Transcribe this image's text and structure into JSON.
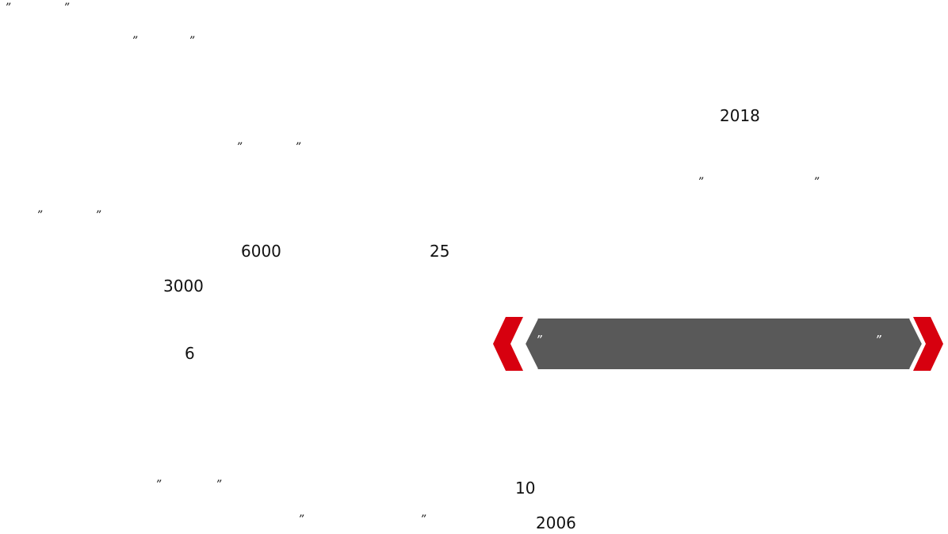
{
  "quote_marks": {
    "open": "”",
    "close": "”"
  },
  "numbers": {
    "n2018": "2018",
    "n6000": "6000",
    "n25": "25",
    "n3000": "3000",
    "n6": "6",
    "n10": "10",
    "n2006": "2006"
  },
  "banner": {
    "open_quote": "”",
    "close_quote": "”",
    "chevron_color": "#d7000f",
    "fill_color": "#595959"
  }
}
